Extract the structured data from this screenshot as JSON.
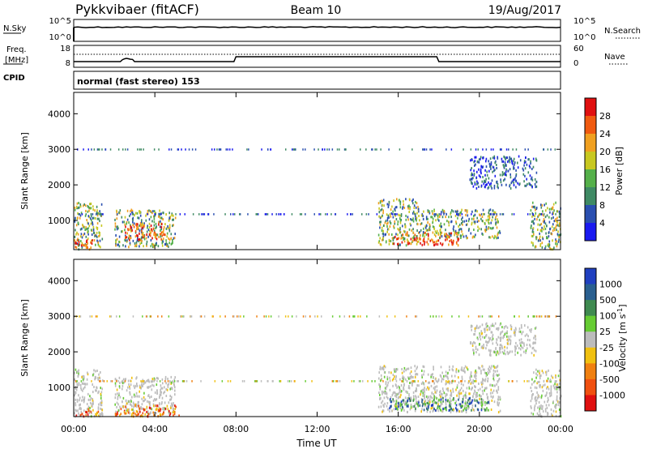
{
  "header": {
    "station": "Pykkvibaer (fitACF)",
    "beam": "Beam 10",
    "date": "19/Aug/2017"
  },
  "summary_panels": {
    "nsky_label": "N.Sky",
    "nsearch_label": "N.Search",
    "freq_label_top": "Freq.",
    "freq_label_bottom": "[MHz]",
    "nave_label": "Nave",
    "cpid_label": "CPID",
    "cpid_value": "normal (fast stereo) 153",
    "noise_ticks": [
      "10^5",
      "10^0"
    ],
    "freq_ticks": [
      "18",
      "8"
    ],
    "nave_ticks": [
      "60",
      "0"
    ]
  },
  "colors": {
    "power_scale": [
      "#1a1af0",
      "#2a4fb0",
      "#3f8a64",
      "#55b04a",
      "#c8c820",
      "#f0a020",
      "#f05a10",
      "#e01010"
    ],
    "velocity_scale": [
      "#2040c0",
      "#2a6090",
      "#3f8a50",
      "#66cc33",
      "#bcbcbc",
      "#f0c010",
      "#f08010",
      "#f05010",
      "#e01010"
    ]
  },
  "chart_data": [
    {
      "type": "heatmap",
      "title": "",
      "xlabel": "Time UT",
      "ylabel": "Slant Range [km]",
      "x_ticks": [
        "00:00",
        "04:00",
        "08:00",
        "12:00",
        "16:00",
        "20:00",
        "00:00"
      ],
      "xlim_hours": [
        0,
        24
      ],
      "y_ticks": [
        1000,
        2000,
        3000,
        4000
      ],
      "ylim": [
        180,
        4600
      ],
      "colorbar_label": "Power [dB]",
      "colorbar_ticks": [
        "4",
        "8",
        "12",
        "16",
        "20",
        "24",
        "28"
      ],
      "colorbar_range": [
        0,
        32
      ],
      "regions": [
        {
          "t0": 0.0,
          "t1": 1.4,
          "r0": 180,
          "r1": 1500,
          "level": "mid"
        },
        {
          "t0": 0.0,
          "t1": 0.9,
          "r0": 180,
          "r1": 450,
          "level": "high"
        },
        {
          "t0": 2.0,
          "t1": 5.0,
          "r0": 250,
          "r1": 1300,
          "level": "mid"
        },
        {
          "t0": 2.5,
          "t1": 4.5,
          "r0": 450,
          "r1": 900,
          "level": "high"
        },
        {
          "t0": 15.0,
          "t1": 17.0,
          "r0": 300,
          "r1": 1600,
          "level": "mid"
        },
        {
          "t0": 15.5,
          "t1": 19.0,
          "r0": 300,
          "r1": 650,
          "level": "high"
        },
        {
          "t0": 17.0,
          "t1": 21.0,
          "r0": 500,
          "r1": 1300,
          "level": "mid"
        },
        {
          "t0": 19.5,
          "t1": 22.8,
          "r0": 1900,
          "r1": 2800,
          "level": "low"
        },
        {
          "t0": 22.5,
          "t1": 24.0,
          "r0": 180,
          "r1": 1500,
          "level": "mid"
        }
      ]
    },
    {
      "type": "heatmap",
      "title": "",
      "xlabel": "Time UT",
      "ylabel": "Slant Range [km]",
      "x_ticks": [
        "00:00",
        "04:00",
        "08:00",
        "12:00",
        "16:00",
        "20:00",
        "00:00"
      ],
      "xlim_hours": [
        0,
        24
      ],
      "y_ticks": [
        1000,
        2000,
        3000,
        4000
      ],
      "ylim": [
        180,
        4600
      ],
      "colorbar_label": "Velocity [m s-1]",
      "colorbar_ticks": [
        "1000",
        "500",
        "100",
        "25",
        "-25",
        "-100",
        "-500",
        "-1000"
      ],
      "regions": [
        {
          "t0": 0.0,
          "t1": 1.4,
          "r0": 180,
          "r1": 1500,
          "level": "grey"
        },
        {
          "t0": 0.0,
          "t1": 1.2,
          "r0": 180,
          "r1": 400,
          "level": "negative"
        },
        {
          "t0": 2.0,
          "t1": 5.0,
          "r0": 250,
          "r1": 1300,
          "level": "grey"
        },
        {
          "t0": 2.0,
          "t1": 5.2,
          "r0": 180,
          "r1": 500,
          "level": "negative"
        },
        {
          "t0": 15.0,
          "t1": 21.0,
          "r0": 300,
          "r1": 1600,
          "level": "grey"
        },
        {
          "t0": 15.5,
          "t1": 20.5,
          "r0": 350,
          "r1": 700,
          "level": "positive"
        },
        {
          "t0": 19.5,
          "t1": 22.8,
          "r0": 1900,
          "r1": 2800,
          "level": "grey"
        },
        {
          "t0": 22.5,
          "t1": 24.0,
          "r0": 180,
          "r1": 1500,
          "level": "grey"
        }
      ]
    }
  ]
}
